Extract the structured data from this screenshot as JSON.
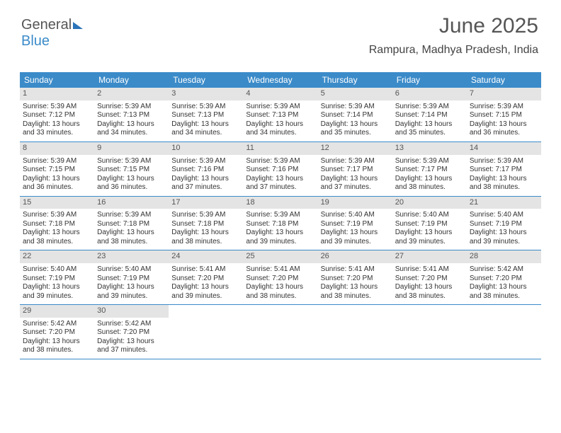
{
  "logo": {
    "line1": "General",
    "line2": "Blue"
  },
  "title": "June 2025",
  "subtitle": "Rampura, Madhya Pradesh, India",
  "header_bg": "#3b8bc9",
  "daynum_bg": "#e4e4e4",
  "row_border": "#3b8bc9",
  "weekdays": [
    "Sunday",
    "Monday",
    "Tuesday",
    "Wednesday",
    "Thursday",
    "Friday",
    "Saturday"
  ],
  "weeks": [
    [
      {
        "n": "1",
        "sr": "5:39 AM",
        "ss": "7:12 PM",
        "dl": "13 hours and 33 minutes."
      },
      {
        "n": "2",
        "sr": "5:39 AM",
        "ss": "7:13 PM",
        "dl": "13 hours and 34 minutes."
      },
      {
        "n": "3",
        "sr": "5:39 AM",
        "ss": "7:13 PM",
        "dl": "13 hours and 34 minutes."
      },
      {
        "n": "4",
        "sr": "5:39 AM",
        "ss": "7:13 PM",
        "dl": "13 hours and 34 minutes."
      },
      {
        "n": "5",
        "sr": "5:39 AM",
        "ss": "7:14 PM",
        "dl": "13 hours and 35 minutes."
      },
      {
        "n": "6",
        "sr": "5:39 AM",
        "ss": "7:14 PM",
        "dl": "13 hours and 35 minutes."
      },
      {
        "n": "7",
        "sr": "5:39 AM",
        "ss": "7:15 PM",
        "dl": "13 hours and 36 minutes."
      }
    ],
    [
      {
        "n": "8",
        "sr": "5:39 AM",
        "ss": "7:15 PM",
        "dl": "13 hours and 36 minutes."
      },
      {
        "n": "9",
        "sr": "5:39 AM",
        "ss": "7:15 PM",
        "dl": "13 hours and 36 minutes."
      },
      {
        "n": "10",
        "sr": "5:39 AM",
        "ss": "7:16 PM",
        "dl": "13 hours and 37 minutes."
      },
      {
        "n": "11",
        "sr": "5:39 AM",
        "ss": "7:16 PM",
        "dl": "13 hours and 37 minutes."
      },
      {
        "n": "12",
        "sr": "5:39 AM",
        "ss": "7:17 PM",
        "dl": "13 hours and 37 minutes."
      },
      {
        "n": "13",
        "sr": "5:39 AM",
        "ss": "7:17 PM",
        "dl": "13 hours and 38 minutes."
      },
      {
        "n": "14",
        "sr": "5:39 AM",
        "ss": "7:17 PM",
        "dl": "13 hours and 38 minutes."
      }
    ],
    [
      {
        "n": "15",
        "sr": "5:39 AM",
        "ss": "7:18 PM",
        "dl": "13 hours and 38 minutes."
      },
      {
        "n": "16",
        "sr": "5:39 AM",
        "ss": "7:18 PM",
        "dl": "13 hours and 38 minutes."
      },
      {
        "n": "17",
        "sr": "5:39 AM",
        "ss": "7:18 PM",
        "dl": "13 hours and 38 minutes."
      },
      {
        "n": "18",
        "sr": "5:39 AM",
        "ss": "7:18 PM",
        "dl": "13 hours and 39 minutes."
      },
      {
        "n": "19",
        "sr": "5:40 AM",
        "ss": "7:19 PM",
        "dl": "13 hours and 39 minutes."
      },
      {
        "n": "20",
        "sr": "5:40 AM",
        "ss": "7:19 PM",
        "dl": "13 hours and 39 minutes."
      },
      {
        "n": "21",
        "sr": "5:40 AM",
        "ss": "7:19 PM",
        "dl": "13 hours and 39 minutes."
      }
    ],
    [
      {
        "n": "22",
        "sr": "5:40 AM",
        "ss": "7:19 PM",
        "dl": "13 hours and 39 minutes."
      },
      {
        "n": "23",
        "sr": "5:40 AM",
        "ss": "7:19 PM",
        "dl": "13 hours and 39 minutes."
      },
      {
        "n": "24",
        "sr": "5:41 AM",
        "ss": "7:20 PM",
        "dl": "13 hours and 39 minutes."
      },
      {
        "n": "25",
        "sr": "5:41 AM",
        "ss": "7:20 PM",
        "dl": "13 hours and 38 minutes."
      },
      {
        "n": "26",
        "sr": "5:41 AM",
        "ss": "7:20 PM",
        "dl": "13 hours and 38 minutes."
      },
      {
        "n": "27",
        "sr": "5:41 AM",
        "ss": "7:20 PM",
        "dl": "13 hours and 38 minutes."
      },
      {
        "n": "28",
        "sr": "5:42 AM",
        "ss": "7:20 PM",
        "dl": "13 hours and 38 minutes."
      }
    ],
    [
      {
        "n": "29",
        "sr": "5:42 AM",
        "ss": "7:20 PM",
        "dl": "13 hours and 38 minutes."
      },
      {
        "n": "30",
        "sr": "5:42 AM",
        "ss": "7:20 PM",
        "dl": "13 hours and 37 minutes."
      },
      null,
      null,
      null,
      null,
      null
    ]
  ],
  "labels": {
    "sunrise": "Sunrise:",
    "sunset": "Sunset:",
    "daylight": "Daylight:"
  }
}
